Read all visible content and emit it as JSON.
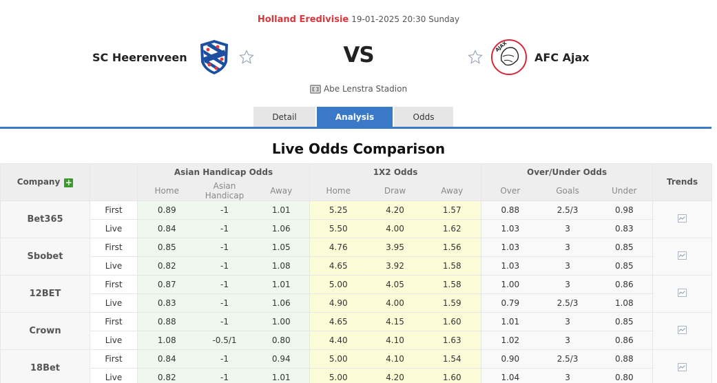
{
  "match": {
    "league": "Holland Eredivisie",
    "datetime": "19-01-2025 20:30 Sunday",
    "home_team": "SC Heerenveen",
    "away_team": "AFC Ajax",
    "vs": "VS",
    "stadium": "Abe Lenstra Stadion"
  },
  "tabs": [
    {
      "label": "Detail",
      "active": false
    },
    {
      "label": "Analysis",
      "active": true
    },
    {
      "label": "Odds",
      "active": false
    }
  ],
  "section_title": "Live Odds Comparison",
  "table": {
    "company_header": "Company",
    "groups": {
      "asian": "Asian Handicap Odds",
      "x12": "1X2 Odds",
      "ou": "Over/Under Odds",
      "trends": "Trends"
    },
    "subheaders": {
      "asian": [
        "Home",
        "Asian Handicap",
        "Away"
      ],
      "x12": [
        "Home",
        "Draw",
        "Away"
      ],
      "ou": [
        "Over",
        "Goals",
        "Under"
      ]
    },
    "rows": [
      {
        "company": "Bet365",
        "first": {
          "label": "First",
          "ah": [
            "0.89",
            "-1",
            "1.01"
          ],
          "x12": [
            "5.25",
            "4.20",
            "1.57"
          ],
          "ou": [
            "0.88",
            "2.5/3",
            "0.98"
          ]
        },
        "live": {
          "label": "Live",
          "ah": [
            "0.84",
            "-1",
            "1.06"
          ],
          "x12": [
            "5.50",
            "4.00",
            "1.62"
          ],
          "ou": [
            "1.03",
            "3",
            "0.83"
          ]
        }
      },
      {
        "company": "Sbobet",
        "first": {
          "label": "First",
          "ah": [
            "0.85",
            "-1",
            "1.05"
          ],
          "x12": [
            "4.76",
            "3.95",
            "1.56"
          ],
          "ou": [
            "1.03",
            "3",
            "0.85"
          ]
        },
        "live": {
          "label": "Live",
          "ah": [
            "0.82",
            "-1",
            "1.08"
          ],
          "x12": [
            "4.65",
            "3.92",
            "1.58"
          ],
          "ou": [
            "1.03",
            "3",
            "0.85"
          ]
        }
      },
      {
        "company": "12BET",
        "first": {
          "label": "First",
          "ah": [
            "0.87",
            "-1",
            "1.01"
          ],
          "x12": [
            "5.00",
            "4.05",
            "1.58"
          ],
          "ou": [
            "1.00",
            "3",
            "0.86"
          ]
        },
        "live": {
          "label": "Live",
          "ah": [
            "0.83",
            "-1",
            "1.06"
          ],
          "x12": [
            "4.90",
            "4.00",
            "1.59"
          ],
          "ou": [
            "0.79",
            "2.5/3",
            "1.08"
          ]
        }
      },
      {
        "company": "Crown",
        "first": {
          "label": "First",
          "ah": [
            "0.88",
            "-1",
            "1.00"
          ],
          "x12": [
            "4.65",
            "4.15",
            "1.60"
          ],
          "ou": [
            "1.01",
            "3",
            "0.85"
          ]
        },
        "live": {
          "label": "Live",
          "ah": [
            "1.08",
            "-0.5/1",
            "0.80"
          ],
          "x12": [
            "4.40",
            "4.10",
            "1.63"
          ],
          "ou": [
            "1.02",
            "3",
            "0.86"
          ]
        }
      },
      {
        "company": "18Bet",
        "first": {
          "label": "First",
          "ah": [
            "0.84",
            "-1",
            "0.94"
          ],
          "x12": [
            "5.00",
            "4.10",
            "1.54"
          ],
          "ou": [
            "0.90",
            "2.5/3",
            "0.88"
          ]
        },
        "live": {
          "label": "Live",
          "ah": [
            "0.82",
            "-1",
            "1.01"
          ],
          "x12": [
            "5.00",
            "4.20",
            "1.60"
          ],
          "ou": [
            "1.04",
            "3",
            "0.80"
          ]
        }
      }
    ]
  },
  "colors": {
    "accent": "#3a78c8",
    "league": "#d9363e",
    "plus": "#3c9a2a",
    "asian_bg": "#eef8ee",
    "x12_bg": "#fdfcd9"
  },
  "icons": {
    "favorite": "star-outline-icon",
    "stadium": "stadium-icon",
    "add": "plus-icon",
    "trend": "trend-chart-icon"
  }
}
